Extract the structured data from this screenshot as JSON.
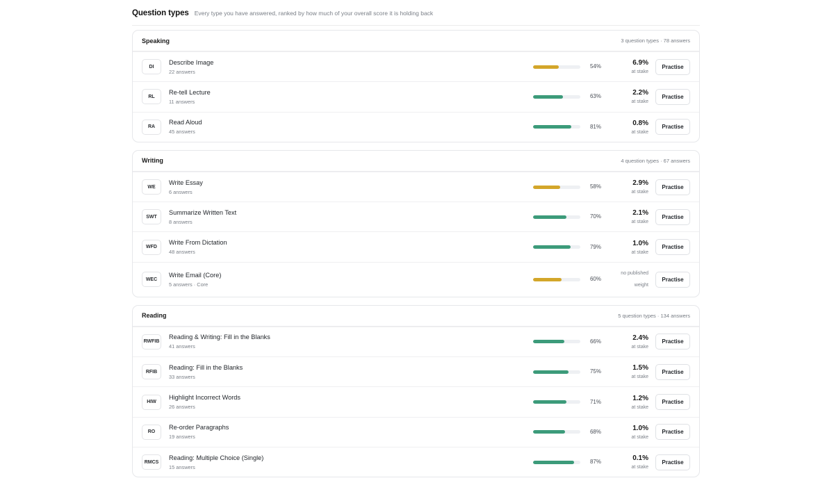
{
  "header": {
    "title": "Question types",
    "subtitle": "Every type you have answered, ranked by how much of your overall score it is holding back"
  },
  "colors": {
    "green": "#3c9b7a",
    "amber": "#d3a62a"
  },
  "sections": [
    {
      "title": "Speaking",
      "meta": "3 question types · 78 answers",
      "rows": [
        {
          "code": "DI",
          "name": "Describe Image",
          "count": "22 answers",
          "pct": 54,
          "pct_label": "54%",
          "color": "amber",
          "stake": "6.9%",
          "stake_label": "at stake",
          "action": "Practise"
        },
        {
          "code": "RL",
          "name": "Re-tell Lecture",
          "count": "11 answers",
          "pct": 63,
          "pct_label": "63%",
          "color": "green",
          "stake": "2.2%",
          "stake_label": "at stake",
          "action": "Practise"
        },
        {
          "code": "RA",
          "name": "Read Aloud",
          "count": "45 answers",
          "pct": 81,
          "pct_label": "81%",
          "color": "green",
          "stake": "0.8%",
          "stake_label": "at stake",
          "action": "Practise"
        }
      ]
    },
    {
      "title": "Writing",
      "meta": "4 question types · 67 answers",
      "rows": [
        {
          "code": "WE",
          "name": "Write Essay",
          "count": "6 answers",
          "pct": 58,
          "pct_label": "58%",
          "color": "amber",
          "stake": "2.9%",
          "stake_label": "at stake",
          "action": "Practise"
        },
        {
          "code": "SWT",
          "name": "Summarize Written Text",
          "count": "8 answers",
          "pct": 70,
          "pct_label": "70%",
          "color": "green",
          "stake": "2.1%",
          "stake_label": "at stake",
          "action": "Practise"
        },
        {
          "code": "WFD",
          "name": "Write From Dictation",
          "count": "48 answers",
          "pct": 79,
          "pct_label": "79%",
          "color": "green",
          "stake": "1.0%",
          "stake_label": "at stake",
          "action": "Practise"
        },
        {
          "code": "WEC",
          "name": "Write Email (Core)",
          "count": "5 answers · Core",
          "pct": 60,
          "pct_label": "60%",
          "color": "amber",
          "stake": "",
          "stake_label": "",
          "no_weight": [
            "no published",
            "weight"
          ],
          "action": "Practise"
        }
      ]
    },
    {
      "title": "Reading",
      "meta": "5 question types · 134 answers",
      "rows": [
        {
          "code": "RWFIB",
          "name": "Reading & Writing: Fill in the Blanks",
          "count": "41 answers",
          "pct": 66,
          "pct_label": "66%",
          "color": "green",
          "stake": "2.4%",
          "stake_label": "at stake",
          "action": "Practise"
        },
        {
          "code": "RFIB",
          "name": "Reading: Fill in the Blanks",
          "count": "33 answers",
          "pct": 75,
          "pct_label": "75%",
          "color": "green",
          "stake": "1.5%",
          "stake_label": "at stake",
          "action": "Practise"
        },
        {
          "code": "HIW",
          "name": "Highlight Incorrect Words",
          "count": "26 answers",
          "pct": 71,
          "pct_label": "71%",
          "color": "green",
          "stake": "1.2%",
          "stake_label": "at stake",
          "action": "Practise"
        },
        {
          "code": "RO",
          "name": "Re-order Paragraphs",
          "count": "19 answers",
          "pct": 68,
          "pct_label": "68%",
          "color": "green",
          "stake": "1.0%",
          "stake_label": "at stake",
          "action": "Practise"
        },
        {
          "code": "RMCS",
          "name": "Reading: Multiple Choice (Single)",
          "count": "15 answers",
          "pct": 87,
          "pct_label": "87%",
          "color": "green",
          "stake": "0.1%",
          "stake_label": "at stake",
          "action": "Practise"
        }
      ]
    }
  ]
}
